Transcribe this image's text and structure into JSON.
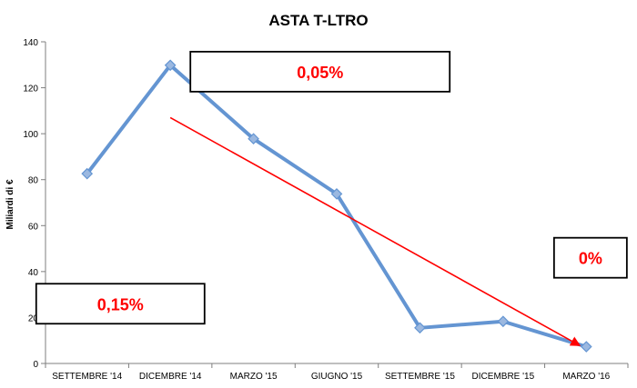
{
  "chart_data": {
    "type": "line",
    "title": "ASTA T-LTRO",
    "ylabel": "Miliardi di €",
    "xlabel": "",
    "categories": [
      "SETTEMBRE '14",
      "DICEMBRE '14",
      "MARZO '15",
      "GIUGNO '15",
      "SETTEMBRE '15",
      "DICEMBRE '15",
      "MARZO '16"
    ],
    "series": [
      {
        "values": [
          82.6,
          129.8,
          97.8,
          73.8,
          15.5,
          18.3,
          7.3
        ]
      }
    ],
    "ylim": [
      0,
      140
    ],
    "yticks": [
      0,
      20,
      40,
      60,
      80,
      100,
      120,
      140
    ],
    "grid": false,
    "legend": "none",
    "line_color": "#6495d2",
    "marker_color": "#9bb8e0",
    "trend": {
      "from": {
        "x": 1,
        "y": 107
      },
      "to": {
        "x": 6,
        "y": 8
      },
      "color": "#ff0000"
    },
    "annotations": [
      {
        "text": "0,05%",
        "anchor_x": 2.8,
        "anchor_y": 127,
        "color": "#ff0000"
      },
      {
        "text": "0,15%",
        "anchor_x": 0.4,
        "anchor_y": 26,
        "color": "#ff0000"
      },
      {
        "text": "0%",
        "anchor_x": 6.05,
        "anchor_y": 46,
        "color": "#ff0000"
      }
    ]
  }
}
